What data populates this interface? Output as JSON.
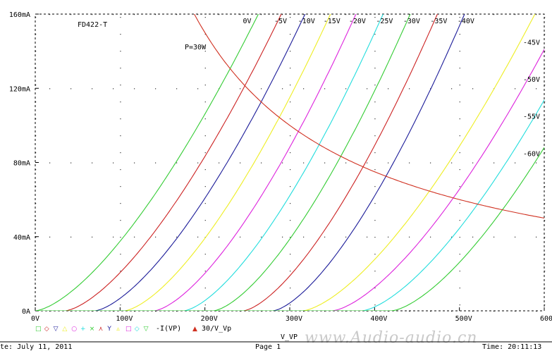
{
  "chart_data": {
    "type": "line",
    "title": "FD422-T",
    "xlabel": "V_VP",
    "ylabel": "",
    "xlim": [
      0,
      600
    ],
    "ylim": [
      0,
      160
    ],
    "x_unit": "V",
    "y_unit": "mA",
    "x_ticks": [
      "0V",
      "100V",
      "200V",
      "300V",
      "400V",
      "500V",
      "600V"
    ],
    "y_ticks": [
      "0A",
      "40mA",
      "80mA",
      "120mA",
      "160mA"
    ],
    "grid": "dotted",
    "legend_text": "-I(VP)",
    "legend_text2": "30/V_Vp",
    "power_curve": {
      "label": "P=30W",
      "watts": 30,
      "color": "#d03020"
    },
    "series": [
      {
        "name": "0V",
        "offset": 0,
        "span": 263,
        "color": "#33cc33"
      },
      {
        "name": "-5V",
        "offset": 35,
        "span": 255,
        "color": "#cc2222"
      },
      {
        "name": "-10V",
        "offset": 70,
        "span": 248,
        "color": "#1c1c99"
      },
      {
        "name": "-15V",
        "offset": 105,
        "span": 243,
        "color": "#eeee22"
      },
      {
        "name": "-20V",
        "offset": 140,
        "span": 238,
        "color": "#dd22dd"
      },
      {
        "name": "-25V",
        "offset": 175,
        "span": 235,
        "color": "#22dddd"
      },
      {
        "name": "-30V",
        "offset": 210,
        "span": 232,
        "color": "#33cc33"
      },
      {
        "name": "-35V",
        "offset": 245,
        "span": 229,
        "color": "#cc2222"
      },
      {
        "name": "-40V",
        "offset": 280,
        "span": 226,
        "color": "#1c1c99"
      },
      {
        "name": "-45V",
        "offset": 315,
        "span": 274,
        "color": "#eeee22"
      },
      {
        "name": "-50V",
        "offset": 350,
        "span": 272,
        "color": "#dd22dd"
      },
      {
        "name": "-55V",
        "offset": 385,
        "span": 270,
        "color": "#22dddd"
      },
      {
        "name": "-60V",
        "offset": 420,
        "span": 268,
        "color": "#33cc33"
      }
    ]
  },
  "legend_markers": [
    "□",
    "◇",
    "▽",
    "△",
    "○",
    "+",
    "×",
    "⋏",
    "Y",
    "▵",
    "□",
    "◇",
    "▽"
  ],
  "legend_marker_colors": [
    "#33cc33",
    "#cc2222",
    "#1c1c99",
    "#eeee22",
    "#dd22dd",
    "#22dddd",
    "#33cc33",
    "#cc2222",
    "#1c1c99",
    "#eeee22",
    "#dd22dd",
    "#22dddd",
    "#33cc33"
  ],
  "power_marker": "▲",
  "footer": {
    "date": "te: July 11, 2011",
    "page": "Page 1",
    "time": "Time: 20:11:13"
  },
  "watermark": "www.Audio-audio.cn"
}
